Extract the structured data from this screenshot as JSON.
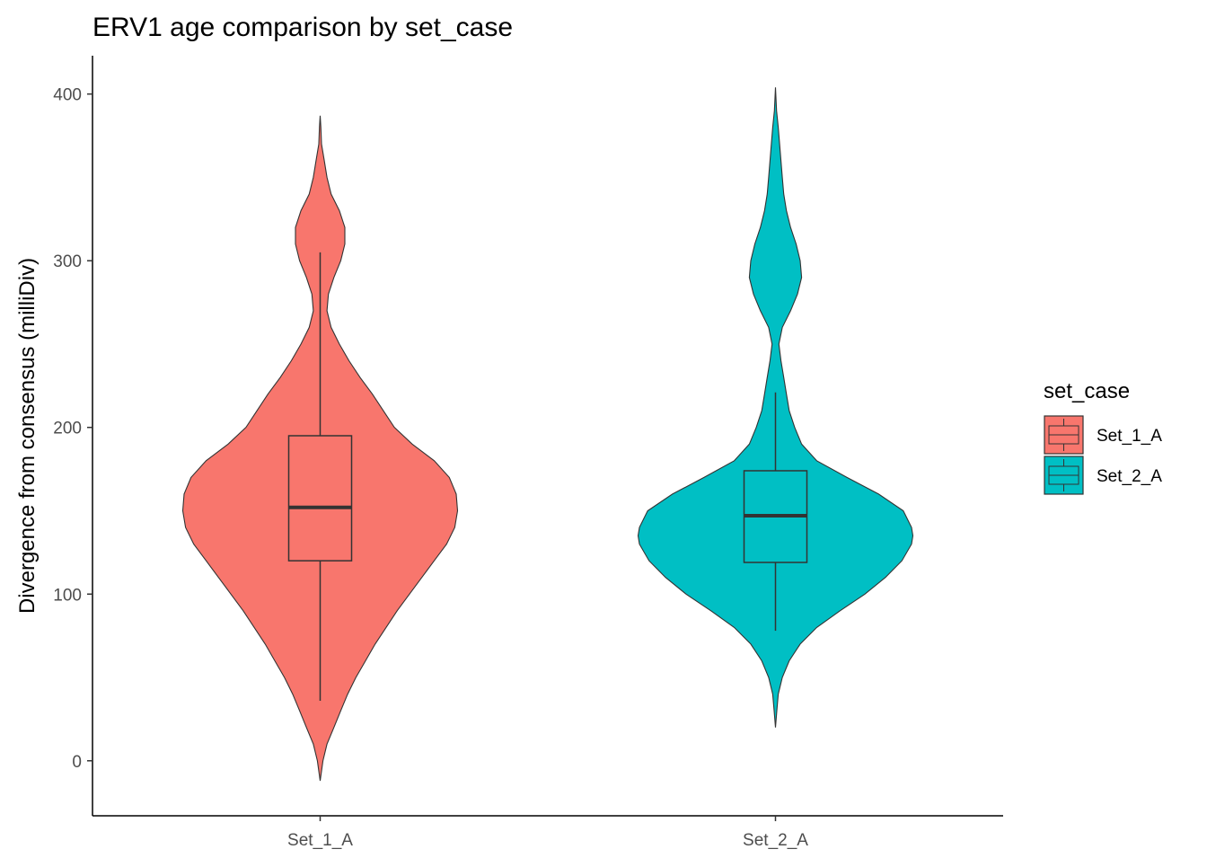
{
  "chart_data": {
    "type": "violin",
    "title": "ERV1 age comparison by set_case",
    "xlabel": "",
    "ylabel": "Divergence from consensus (milliDiv)",
    "categories": [
      "Set_1_A",
      "Set_2_A"
    ],
    "ylim": [
      -33,
      423
    ],
    "yticks": [
      0,
      100,
      200,
      300,
      400
    ],
    "grid": false,
    "legend": {
      "title": "set_case",
      "position": "right",
      "entries": [
        "Set_1_A",
        "Set_2_A"
      ]
    },
    "series": [
      {
        "name": "Set_1_A",
        "color": "#F8766D",
        "min": -12,
        "max": 387,
        "box": {
          "whisker_low": 36,
          "q1": 120,
          "median": 152,
          "q3": 195,
          "whisker_high": 305
        },
        "density_profile": [
          [
            -12,
            0.0
          ],
          [
            0,
            0.02
          ],
          [
            10,
            0.05
          ],
          [
            20,
            0.1
          ],
          [
            30,
            0.15
          ],
          [
            40,
            0.2
          ],
          [
            50,
            0.26
          ],
          [
            60,
            0.33
          ],
          [
            70,
            0.4
          ],
          [
            80,
            0.48
          ],
          [
            90,
            0.56
          ],
          [
            100,
            0.65
          ],
          [
            110,
            0.74
          ],
          [
            120,
            0.83
          ],
          [
            130,
            0.92
          ],
          [
            140,
            0.98
          ],
          [
            150,
            1.0
          ],
          [
            160,
            0.99
          ],
          [
            170,
            0.94
          ],
          [
            180,
            0.83
          ],
          [
            190,
            0.67
          ],
          [
            200,
            0.54
          ],
          [
            210,
            0.46
          ],
          [
            220,
            0.38
          ],
          [
            230,
            0.29
          ],
          [
            240,
            0.21
          ],
          [
            250,
            0.14
          ],
          [
            260,
            0.08
          ],
          [
            270,
            0.05
          ],
          [
            280,
            0.06
          ],
          [
            290,
            0.1
          ],
          [
            300,
            0.15
          ],
          [
            310,
            0.18
          ],
          [
            320,
            0.18
          ],
          [
            330,
            0.14
          ],
          [
            340,
            0.08
          ],
          [
            350,
            0.05
          ],
          [
            360,
            0.03
          ],
          [
            370,
            0.01
          ],
          [
            380,
            0.005
          ],
          [
            387,
            0.0
          ]
        ]
      },
      {
        "name": "Set_2_A",
        "color": "#00BFC4",
        "min": 20,
        "max": 404,
        "box": {
          "whisker_low": 78,
          "q1": 119,
          "median": 147,
          "q3": 174,
          "whisker_high": 221
        },
        "density_profile": [
          [
            20,
            0.0
          ],
          [
            30,
            0.01
          ],
          [
            40,
            0.02
          ],
          [
            50,
            0.05
          ],
          [
            60,
            0.1
          ],
          [
            70,
            0.18
          ],
          [
            80,
            0.3
          ],
          [
            90,
            0.47
          ],
          [
            100,
            0.65
          ],
          [
            110,
            0.8
          ],
          [
            120,
            0.92
          ],
          [
            130,
            0.99
          ],
          [
            135,
            1.0
          ],
          [
            140,
            0.99
          ],
          [
            150,
            0.93
          ],
          [
            160,
            0.75
          ],
          [
            170,
            0.52
          ],
          [
            180,
            0.3
          ],
          [
            190,
            0.19
          ],
          [
            200,
            0.14
          ],
          [
            210,
            0.1
          ],
          [
            220,
            0.08
          ],
          [
            230,
            0.06
          ],
          [
            240,
            0.04
          ],
          [
            250,
            0.025
          ],
          [
            260,
            0.05
          ],
          [
            270,
            0.11
          ],
          [
            280,
            0.16
          ],
          [
            290,
            0.19
          ],
          [
            300,
            0.18
          ],
          [
            310,
            0.15
          ],
          [
            320,
            0.11
          ],
          [
            330,
            0.08
          ],
          [
            340,
            0.06
          ],
          [
            350,
            0.05
          ],
          [
            360,
            0.04
          ],
          [
            370,
            0.03
          ],
          [
            380,
            0.02
          ],
          [
            390,
            0.008
          ],
          [
            404,
            0.0
          ]
        ]
      }
    ]
  }
}
